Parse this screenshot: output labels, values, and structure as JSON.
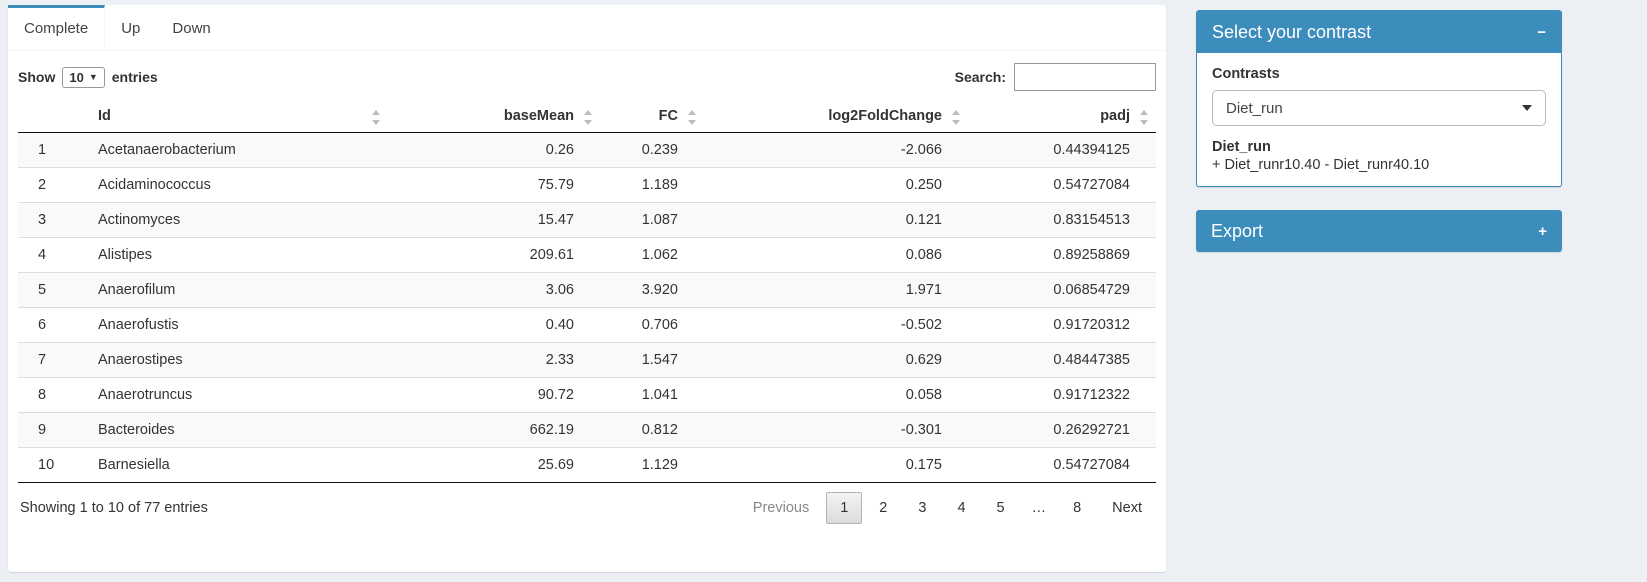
{
  "tabs": [
    {
      "label": "Complete",
      "active": true
    },
    {
      "label": "Up",
      "active": false
    },
    {
      "label": "Down",
      "active": false
    }
  ],
  "controls": {
    "show_label": "Show",
    "page_length": "10",
    "entries_label": "entries",
    "search_label": "Search:",
    "search_value": ""
  },
  "table": {
    "columns": [
      "Id",
      "baseMean",
      "FC",
      "log2FoldChange",
      "padj"
    ],
    "rows": [
      {
        "num": "1",
        "id": "Acetanaerobacterium",
        "baseMean": "0.26",
        "fc": "0.239",
        "log2FoldChange": "-2.066",
        "padj": "0.44394125"
      },
      {
        "num": "2",
        "id": "Acidaminococcus",
        "baseMean": "75.79",
        "fc": "1.189",
        "log2FoldChange": "0.250",
        "padj": "0.54727084"
      },
      {
        "num": "3",
        "id": "Actinomyces",
        "baseMean": "15.47",
        "fc": "1.087",
        "log2FoldChange": "0.121",
        "padj": "0.83154513"
      },
      {
        "num": "4",
        "id": "Alistipes",
        "baseMean": "209.61",
        "fc": "1.062",
        "log2FoldChange": "0.086",
        "padj": "0.89258869"
      },
      {
        "num": "5",
        "id": "Anaerofilum",
        "baseMean": "3.06",
        "fc": "3.920",
        "log2FoldChange": "1.971",
        "padj": "0.06854729"
      },
      {
        "num": "6",
        "id": "Anaerofustis",
        "baseMean": "0.40",
        "fc": "0.706",
        "log2FoldChange": "-0.502",
        "padj": "0.91720312"
      },
      {
        "num": "7",
        "id": "Anaerostipes",
        "baseMean": "2.33",
        "fc": "1.547",
        "log2FoldChange": "0.629",
        "padj": "0.48447385"
      },
      {
        "num": "8",
        "id": "Anaerotruncus",
        "baseMean": "90.72",
        "fc": "1.041",
        "log2FoldChange": "0.058",
        "padj": "0.91712322"
      },
      {
        "num": "9",
        "id": "Bacteroides",
        "baseMean": "662.19",
        "fc": "0.812",
        "log2FoldChange": "-0.301",
        "padj": "0.26292721"
      },
      {
        "num": "10",
        "id": "Barnesiella",
        "baseMean": "25.69",
        "fc": "1.129",
        "log2FoldChange": "0.175",
        "padj": "0.54727084"
      }
    ]
  },
  "footer": {
    "info": "Showing 1 to 10 of 77 entries",
    "pagination": [
      "Previous",
      "1",
      "2",
      "3",
      "4",
      "5",
      "…",
      "8",
      "Next"
    ],
    "active_page": "1"
  },
  "contrast_panel": {
    "title": "Select your contrast",
    "collapse_icon": "−",
    "contrasts_label": "Contrasts",
    "selected_contrast": "Diet_run",
    "contrast_name": "Diet_run",
    "contrast_formula": "+ Diet_runr10.40 - Diet_runr40.10"
  },
  "export_panel": {
    "title": "Export",
    "expand_icon": "+"
  },
  "colors": {
    "primary": "#3c8dbc",
    "page_background": "#ecf0f5"
  }
}
